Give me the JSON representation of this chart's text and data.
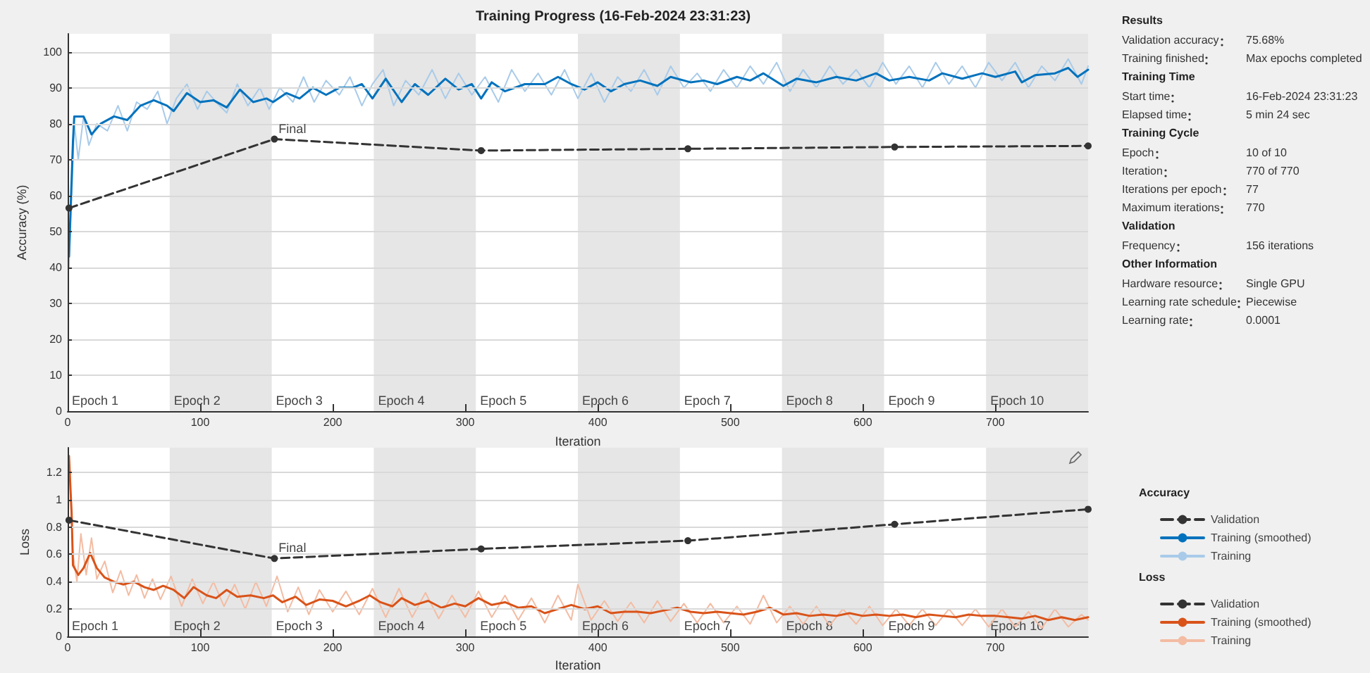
{
  "chart_data": [
    {
      "type": "line",
      "title": "Training Progress (16-Feb-2024 23:31:23)",
      "xlabel": "Iteration",
      "ylabel": "Accuracy (%)",
      "legend_title": "Accuracy",
      "legend": "right",
      "grid": "y",
      "xlim": [
        0,
        770
      ],
      "xticks": [
        0,
        100,
        200,
        300,
        400,
        500,
        600,
        700
      ],
      "ylim": [
        0,
        105
      ],
      "yticks": [
        0,
        10,
        20,
        30,
        40,
        50,
        60,
        70,
        80,
        90,
        100
      ],
      "bands": [
        {
          "axis": "x",
          "from": 77,
          "to": 154,
          "label": "Epoch 2",
          "color": "#e6e6e6"
        },
        {
          "axis": "x",
          "from": 231,
          "to": 308,
          "label": "Epoch 4",
          "color": "#e6e6e6"
        },
        {
          "axis": "x",
          "from": 385,
          "to": 462,
          "label": "Epoch 6",
          "color": "#e6e6e6"
        },
        {
          "axis": "x",
          "from": 539,
          "to": 616,
          "label": "Epoch 8",
          "color": "#e6e6e6"
        },
        {
          "axis": "x",
          "from": 693,
          "to": 770,
          "label": "Epoch 10",
          "color": "#e6e6e6"
        }
      ],
      "annotations": [
        {
          "text": "Final",
          "x": 156,
          "y": 75.7
        },
        "Epoch 1",
        "Epoch 3",
        "Epoch 5",
        "Epoch 7",
        "Epoch 9"
      ],
      "series": [
        {
          "name": "Training",
          "type": "line",
          "color": "#a9cbe9",
          "marker": "none",
          "line_style": "solid",
          "x": [
            1,
            5,
            8,
            12,
            16,
            22,
            30,
            38,
            45,
            52,
            60,
            68,
            75,
            82,
            90,
            98,
            105,
            112,
            120,
            128,
            136,
            145,
            152,
            160,
            170,
            178,
            186,
            195,
            205,
            213,
            222,
            230,
            238,
            246,
            255,
            265,
            275,
            285,
            295,
            305,
            315,
            325,
            335,
            345,
            355,
            365,
            375,
            385,
            395,
            405,
            415,
            425,
            435,
            445,
            455,
            465,
            475,
            485,
            495,
            505,
            515,
            525,
            535,
            545,
            555,
            565,
            575,
            585,
            595,
            605,
            615,
            625,
            635,
            645,
            655,
            665,
            675,
            685,
            695,
            705,
            715,
            725,
            735,
            745,
            755,
            765,
            770
          ],
          "values": [
            40,
            80,
            70,
            82,
            74,
            80,
            78,
            85,
            78,
            86,
            84,
            89,
            80,
            87,
            91,
            84,
            89,
            86,
            83,
            91,
            85,
            90,
            84,
            90,
            86,
            93,
            86,
            92,
            88,
            93,
            85,
            91,
            95,
            85,
            92,
            88,
            95,
            87,
            94,
            88,
            93,
            86,
            95,
            89,
            94,
            88,
            95,
            87,
            94,
            86,
            93,
            89,
            95,
            88,
            96,
            90,
            94,
            89,
            95,
            90,
            96,
            91,
            97,
            89,
            95,
            90,
            96,
            91,
            95,
            90,
            97,
            91,
            96,
            90,
            97,
            91,
            96,
            90,
            97,
            92,
            97,
            90,
            96,
            92,
            98,
            91,
            96
          ]
        },
        {
          "name": "Training (smoothed)",
          "type": "line",
          "color": "#0072bd",
          "marker": "none",
          "line_style": "solid",
          "x": [
            1,
            4,
            5,
            12,
            18,
            25,
            35,
            45,
            55,
            65,
            75,
            80,
            85,
            90,
            100,
            110,
            120,
            130,
            140,
            150,
            155,
            165,
            175,
            185,
            195,
            205,
            215,
            222,
            230,
            240,
            252,
            262,
            272,
            285,
            295,
            305,
            312,
            320,
            330,
            345,
            360,
            370,
            380,
            390,
            400,
            410,
            420,
            432,
            445,
            455,
            470,
            480,
            490,
            505,
            515,
            525,
            540,
            550,
            565,
            580,
            595,
            610,
            620,
            635,
            650,
            660,
            675,
            690,
            700,
            715,
            720,
            730,
            745,
            755,
            762,
            770
          ],
          "values": [
            43,
            75,
            82,
            82,
            77,
            80,
            82,
            81,
            85,
            86.5,
            85,
            83.5,
            86,
            88.5,
            86,
            86.5,
            84.5,
            89.5,
            86,
            87,
            86,
            88.5,
            87,
            90,
            88,
            90,
            90,
            91,
            87,
            92.5,
            86,
            91,
            88,
            92.5,
            89.5,
            91,
            87,
            91.5,
            89,
            91,
            91,
            93,
            91,
            89.5,
            91.5,
            89,
            91,
            92,
            90.5,
            93,
            91.5,
            92,
            91,
            93,
            92,
            94,
            90.5,
            92.5,
            91.5,
            93,
            92,
            94,
            92,
            93,
            92,
            94,
            92.5,
            94,
            93,
            94.5,
            91.5,
            93.5,
            94,
            95.5,
            93,
            95
          ]
        },
        {
          "name": "Validation",
          "type": "line",
          "color": "#333333",
          "marker": "circle",
          "line_style": "dashed",
          "x": [
            1,
            156,
            312,
            468,
            624,
            770
          ],
          "values": [
            56.5,
            75.7,
            72.5,
            73,
            73.5,
            73.8
          ]
        }
      ]
    },
    {
      "type": "line",
      "xlabel": "Iteration",
      "ylabel": "Loss",
      "legend_title": "Loss",
      "legend": "right",
      "grid": "y",
      "xlim": [
        0,
        770
      ],
      "xticks": [
        0,
        100,
        200,
        300,
        400,
        500,
        600,
        700
      ],
      "ylim": [
        0,
        1.38
      ],
      "yticks": [
        0,
        0.2,
        0.4,
        0.6,
        0.8,
        1,
        1.2
      ],
      "bands": [
        {
          "axis": "x",
          "from": 77,
          "to": 154,
          "label": "Epoch 2",
          "color": "#e6e6e6"
        },
        {
          "axis": "x",
          "from": 231,
          "to": 308,
          "label": "Epoch 4",
          "color": "#e6e6e6"
        },
        {
          "axis": "x",
          "from": 385,
          "to": 462,
          "label": "Epoch 6",
          "color": "#e6e6e6"
        },
        {
          "axis": "x",
          "from": 539,
          "to": 616,
          "label": "Epoch 8",
          "color": "#e6e6e6"
        },
        {
          "axis": "x",
          "from": 693,
          "to": 770,
          "label": "Epoch 10",
          "color": "#e6e6e6"
        }
      ],
      "annotations": [
        {
          "text": "Final",
          "x": 156,
          "y": 0.57
        },
        "Epoch 1",
        "Epoch 3",
        "Epoch 5",
        "Epoch 7",
        "Epoch 9"
      ],
      "series": [
        {
          "name": "Training",
          "type": "line",
          "color": "#f3bca3",
          "marker": "none",
          "line_style": "solid",
          "x": [
            1,
            4,
            7,
            10,
            14,
            18,
            22,
            28,
            34,
            40,
            46,
            52,
            58,
            64,
            70,
            78,
            86,
            94,
            102,
            110,
            118,
            126,
            134,
            142,
            150,
            158,
            166,
            174,
            182,
            190,
            200,
            210,
            220,
            230,
            240,
            250,
            260,
            270,
            280,
            290,
            300,
            310,
            320,
            330,
            340,
            350,
            360,
            370,
            380,
            385,
            395,
            405,
            415,
            425,
            435,
            445,
            455,
            465,
            475,
            485,
            495,
            505,
            515,
            525,
            535,
            545,
            555,
            565,
            575,
            585,
            595,
            605,
            615,
            625,
            635,
            645,
            655,
            665,
            675,
            685,
            695,
            705,
            715,
            725,
            735,
            745,
            755,
            765,
            770
          ],
          "values": [
            1.32,
            0.6,
            0.4,
            0.75,
            0.45,
            0.72,
            0.42,
            0.55,
            0.32,
            0.48,
            0.3,
            0.45,
            0.28,
            0.42,
            0.27,
            0.44,
            0.22,
            0.42,
            0.24,
            0.4,
            0.22,
            0.38,
            0.2,
            0.4,
            0.22,
            0.44,
            0.18,
            0.36,
            0.16,
            0.34,
            0.18,
            0.33,
            0.16,
            0.35,
            0.14,
            0.35,
            0.14,
            0.32,
            0.13,
            0.3,
            0.14,
            0.33,
            0.14,
            0.3,
            0.12,
            0.28,
            0.1,
            0.3,
            0.12,
            0.38,
            0.12,
            0.26,
            0.11,
            0.25,
            0.1,
            0.26,
            0.11,
            0.24,
            0.1,
            0.24,
            0.1,
            0.22,
            0.09,
            0.3,
            0.1,
            0.22,
            0.09,
            0.22,
            0.08,
            0.2,
            0.09,
            0.22,
            0.08,
            0.2,
            0.08,
            0.2,
            0.08,
            0.2,
            0.08,
            0.2,
            0.07,
            0.2,
            0.07,
            0.18,
            0.06,
            0.2,
            0.07,
            0.16,
            0.12
          ]
        },
        {
          "name": "Training (smoothed)",
          "type": "line",
          "color": "#d95319",
          "marker": "none",
          "line_style": "solid",
          "x": [
            1,
            3,
            4,
            8,
            12,
            17,
            22,
            28,
            35,
            42,
            50,
            58,
            65,
            72,
            80,
            88,
            95,
            105,
            112,
            120,
            128,
            138,
            148,
            155,
            162,
            172,
            180,
            190,
            200,
            210,
            220,
            228,
            236,
            245,
            252,
            262,
            272,
            282,
            292,
            300,
            310,
            320,
            330,
            340,
            350,
            360,
            370,
            380,
            390,
            400,
            410,
            420,
            430,
            440,
            450,
            460,
            470,
            480,
            490,
            500,
            510,
            520,
            530,
            540,
            550,
            560,
            570,
            580,
            590,
            600,
            610,
            620,
            630,
            640,
            650,
            660,
            670,
            680,
            690,
            700,
            710,
            720,
            730,
            740,
            750,
            760,
            770
          ],
          "values": [
            1.32,
            0.9,
            0.52,
            0.45,
            0.5,
            0.61,
            0.5,
            0.43,
            0.4,
            0.38,
            0.4,
            0.36,
            0.34,
            0.37,
            0.34,
            0.28,
            0.36,
            0.3,
            0.28,
            0.34,
            0.29,
            0.3,
            0.28,
            0.3,
            0.25,
            0.29,
            0.23,
            0.27,
            0.26,
            0.22,
            0.26,
            0.3,
            0.25,
            0.22,
            0.28,
            0.23,
            0.26,
            0.21,
            0.24,
            0.22,
            0.28,
            0.23,
            0.25,
            0.21,
            0.22,
            0.17,
            0.2,
            0.23,
            0.2,
            0.22,
            0.17,
            0.18,
            0.18,
            0.17,
            0.19,
            0.21,
            0.18,
            0.17,
            0.18,
            0.17,
            0.16,
            0.18,
            0.21,
            0.16,
            0.17,
            0.15,
            0.16,
            0.15,
            0.17,
            0.15,
            0.16,
            0.15,
            0.16,
            0.14,
            0.16,
            0.15,
            0.14,
            0.16,
            0.15,
            0.15,
            0.14,
            0.13,
            0.15,
            0.12,
            0.14,
            0.12,
            0.14
          ]
        },
        {
          "name": "Validation",
          "type": "line",
          "color": "#333333",
          "marker": "circle",
          "line_style": "dashed",
          "x": [
            1,
            156,
            312,
            468,
            624,
            770
          ],
          "values": [
            0.85,
            0.57,
            0.64,
            0.7,
            0.82,
            0.93
          ]
        }
      ]
    },
    {
      "type": "other",
      "title": "Results",
      "categories": [
        "Validation accuracy",
        "Training finished"
      ],
      "annotations": [
        "75.68%",
        "Max epochs completed"
      ]
    },
    {
      "type": "other",
      "title": "Training Time",
      "categories": [
        "Start time",
        "Elapsed time"
      ],
      "annotations": [
        "16-Feb-2024 23:31:23",
        "5 min 24 sec"
      ]
    },
    {
      "type": "other",
      "title": "Training Cycle",
      "categories": [
        "Epoch",
        "Iteration",
        "Iterations per epoch",
        "Maximum iterations"
      ],
      "annotations": [
        "10 of 10",
        "770 of 770",
        "77",
        "770"
      ]
    },
    {
      "type": "other",
      "title": "Validation",
      "categories": [
        "Frequency"
      ],
      "annotations": [
        "156 iterations"
      ]
    },
    {
      "type": "other",
      "title": "Other Information",
      "categories": [
        "Hardware resource",
        "Learning rate schedule",
        "Learning rate"
      ],
      "annotations": [
        "Single GPU",
        "Piecewise",
        "0.0001"
      ]
    }
  ]
}
